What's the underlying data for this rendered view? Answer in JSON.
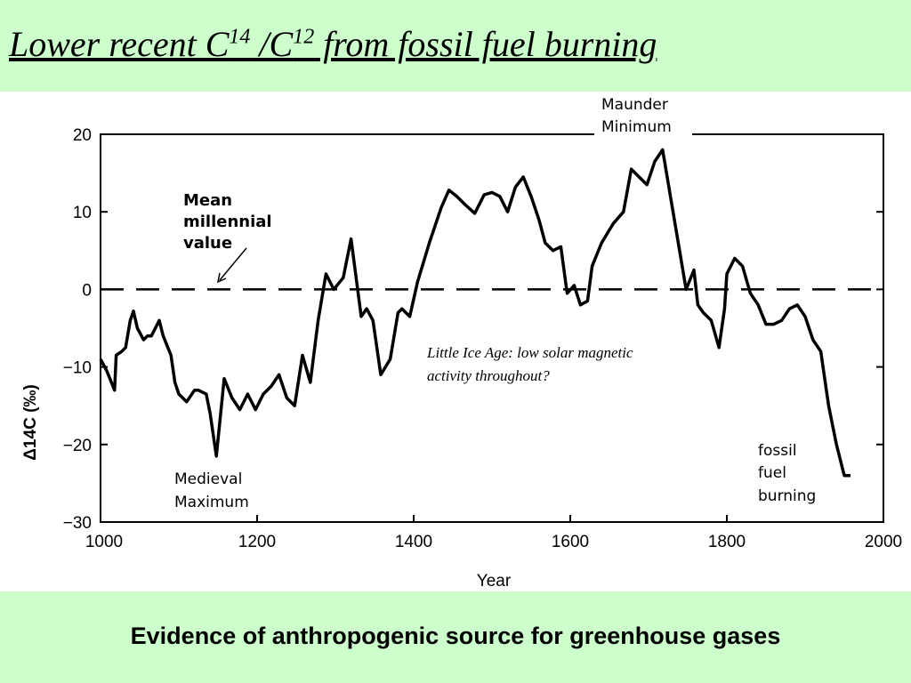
{
  "title": {
    "main": "Lower recent C",
    "sup1": "14",
    "mid": " /C",
    "sup2": "12",
    "tail": " from fossil fuel burning"
  },
  "footer": "Evidence of anthropogenic source for greenhouse gases",
  "chart_data": {
    "type": "line",
    "xlabel": "Year",
    "ylabel": "Δ14C (‰)",
    "xlim": [
      1000,
      2000
    ],
    "ylim": [
      -30,
      20
    ],
    "x_ticks": [
      1000,
      1200,
      1400,
      1600,
      1800,
      2000
    ],
    "y_ticks": [
      20,
      10,
      0,
      -10,
      -20,
      -30
    ],
    "reference_line": {
      "y": 0,
      "style": "dashed",
      "label": "Mean millennial value"
    },
    "series": [
      {
        "name": "",
        "x": [
          1000,
          1008,
          1018,
          1020,
          1027,
          1032,
          1038,
          1042,
          1047,
          1055,
          1060,
          1065,
          1075,
          1080,
          1090,
          1095,
          1100,
          1110,
          1120,
          1125,
          1135,
          1140,
          1148,
          1158,
          1168,
          1178,
          1188,
          1198,
          1208,
          1218,
          1228,
          1238,
          1248,
          1258,
          1268,
          1278,
          1288,
          1298,
          1310,
          1320,
          1333,
          1340,
          1348,
          1358,
          1370,
          1380,
          1385,
          1395,
          1405,
          1420,
          1435,
          1445,
          1455,
          1465,
          1478,
          1490,
          1500,
          1510,
          1520,
          1530,
          1540,
          1550,
          1560,
          1568,
          1578,
          1588,
          1596,
          1605,
          1613,
          1622,
          1628,
          1640,
          1655,
          1668,
          1678,
          1688,
          1698,
          1708,
          1718,
          1728,
          1738,
          1748,
          1758,
          1763,
          1770,
          1780,
          1790,
          1797,
          1800,
          1810,
          1820,
          1830,
          1840,
          1850,
          1860,
          1870,
          1880,
          1890,
          1900,
          1910,
          1920,
          1930,
          1940,
          1950,
          1958
        ],
        "y": [
          -9,
          -10.5,
          -13,
          -8.5,
          -8,
          -7.5,
          -4,
          -2.8,
          -5,
          -6.5,
          -6,
          -6,
          -4,
          -6,
          -8.5,
          -12,
          -13.5,
          -14.5,
          -13,
          -13,
          -13.5,
          -16,
          -21.5,
          -11.5,
          -14,
          -15.5,
          -13.5,
          -15.5,
          -13.5,
          -12.5,
          -11,
          -14,
          -15,
          -8.5,
          -12,
          -4,
          2,
          0,
          1.5,
          6.5,
          -3.5,
          -2.5,
          -4,
          -11,
          -9,
          -3,
          -2.5,
          -3.5,
          1,
          6,
          10.5,
          12.8,
          12,
          11,
          9.8,
          12.2,
          12.5,
          12,
          10,
          13.2,
          14.5,
          12,
          9,
          6,
          5,
          5.5,
          -0.5,
          0.5,
          -2,
          -1.5,
          3,
          6,
          8.5,
          10,
          15.5,
          14.5,
          13.5,
          16.5,
          18,
          12,
          6,
          0,
          2.5,
          -2,
          -3,
          -4,
          -7.5,
          -2.5,
          2,
          4,
          3,
          -0.5,
          -2,
          -4.5,
          -4.5,
          -4,
          -2.5,
          -2,
          -3.5,
          -6.5,
          -8,
          -15,
          -20,
          -24,
          -24
        ]
      }
    ],
    "annotations": [
      {
        "lines": [
          "Maunder",
          "Minimum"
        ]
      },
      {
        "lines": [
          "Mean",
          "millennial",
          "value"
        ]
      },
      {
        "lines": [
          "Medieval",
          "Maximum"
        ]
      },
      {
        "lines": [
          "Little Ice Age: low solar magnetic",
          "activity throughout?"
        ]
      },
      {
        "lines": [
          "fossil",
          "fuel",
          "burning"
        ]
      }
    ],
    "grid": false
  }
}
